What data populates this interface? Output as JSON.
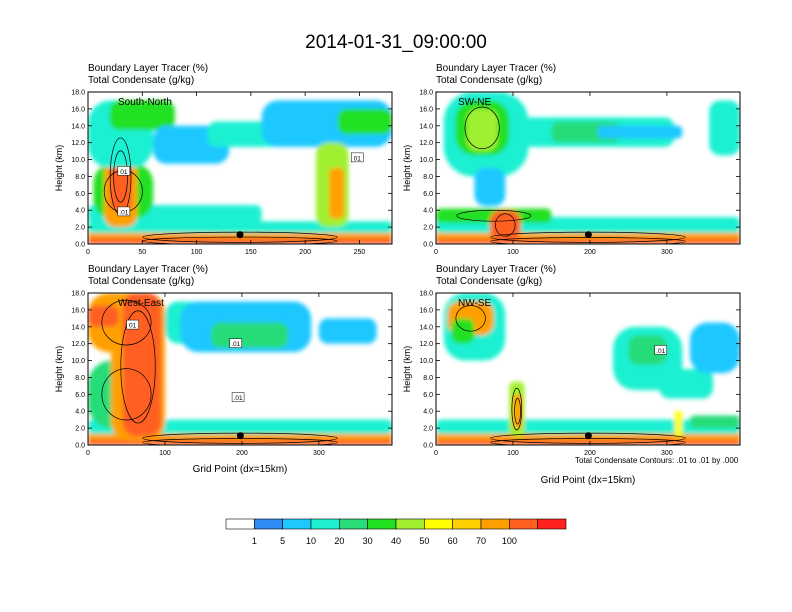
{
  "figure": {
    "title": "2014-01-31_09:00:00",
    "contour_note": "Total Condensate Contours: .01 to .01 by .000",
    "colors": {
      "levels": [
        "#ffffff",
        "#2f8cf2",
        "#1ec8ff",
        "#1ef0d2",
        "#28dc78",
        "#20e020",
        "#a0f030",
        "#ffff00",
        "#ffd000",
        "#ffa000",
        "#ff6020",
        "#ff2020"
      ],
      "contour": "#000000",
      "marker": "#000000"
    }
  },
  "colorbar": {
    "tick_labels": [
      "1",
      "5",
      "10",
      "20",
      "30",
      "40",
      "50",
      "60",
      "70",
      "100"
    ]
  },
  "chart_data": [
    {
      "type": "heatmap",
      "panel": "South-North",
      "title_line1": "Boundary Layer Tracer    (%)",
      "title_line2": "Total Condensate    (g/kg)",
      "ylabel": "Height (km)",
      "xlabel": "",
      "xlim": [
        0,
        280
      ],
      "ylim": [
        0,
        18
      ],
      "xticks": [
        0,
        50,
        100,
        150,
        200,
        250
      ],
      "yticks": [
        0.0,
        2.0,
        4.0,
        6.0,
        8.0,
        10.0,
        12.0,
        14.0,
        16.0,
        18.0
      ],
      "ytick_labels": [
        "0.0",
        "2.0",
        "4.0",
        "6.0",
        "8.0",
        "10.0",
        "12.0",
        "14.0",
        "16.0",
        "18.0"
      ],
      "contour_labels": [
        {
          "text": "01",
          "x": 33,
          "y": 8.6
        },
        {
          "text": ".01",
          "x": 33,
          "y": 3.8
        },
        {
          "text": "01",
          "x": 248,
          "y": 10.2
        }
      ],
      "marker": {
        "x": 140,
        "y": 1.1
      },
      "features": [
        {
          "x0": 0,
          "x1": 280,
          "y0": 0,
          "y1": 1.6,
          "v": 70
        },
        {
          "x0": 0,
          "x1": 280,
          "y0": 1.3,
          "y1": 2.7,
          "v": 10
        },
        {
          "x0": 0,
          "x1": 280,
          "y0": 0,
          "y1": 0.7,
          "v": 100
        },
        {
          "x0": 0,
          "x1": 160,
          "y0": 2.5,
          "y1": 4.6,
          "v": 10
        },
        {
          "x0": 5,
          "x1": 60,
          "y0": 3.0,
          "y1": 9.5,
          "v": 30
        },
        {
          "x0": 15,
          "x1": 45,
          "y0": 2.0,
          "y1": 14.0,
          "v": 70
        },
        {
          "x0": 20,
          "x1": 40,
          "y0": 4.0,
          "y1": 12.0,
          "v": 100
        },
        {
          "x0": 0,
          "x1": 60,
          "y0": 9.0,
          "y1": 17.0,
          "v": 10
        },
        {
          "x0": 20,
          "x1": 80,
          "y0": 13.5,
          "y1": 17.0,
          "v": 30
        },
        {
          "x0": 60,
          "x1": 130,
          "y0": 9.5,
          "y1": 14.0,
          "v": 5
        },
        {
          "x0": 110,
          "x1": 180,
          "y0": 11.5,
          "y1": 14.5,
          "v": 10
        },
        {
          "x0": 160,
          "x1": 280,
          "y0": 11.5,
          "y1": 17.0,
          "v": 5
        },
        {
          "x0": 230,
          "x1": 280,
          "y0": 13.0,
          "y1": 16.0,
          "v": 30
        },
        {
          "x0": 210,
          "x1": 240,
          "y0": 2.0,
          "y1": 12.0,
          "v": 40
        },
        {
          "x0": 222,
          "x1": 236,
          "y0": 3.0,
          "y1": 9.0,
          "v": 70
        }
      ]
    },
    {
      "type": "heatmap",
      "panel": "SW-NE",
      "title_line1": "Boundary Layer Tracer    (%)",
      "title_line2": "Total Condensate    (g/kg)",
      "ylabel": "Height (km)",
      "xlabel": "",
      "xlim": [
        0,
        395
      ],
      "ylim": [
        0,
        18
      ],
      "xticks": [
        0,
        100,
        200,
        300
      ],
      "yticks": [
        0.0,
        2.0,
        4.0,
        6.0,
        8.0,
        10.0,
        12.0,
        14.0,
        16.0,
        18.0
      ],
      "ytick_labels": [
        "0.0",
        "2.0",
        "4.0",
        "6.0",
        "8.0",
        "10.0",
        "12.0",
        "14.0",
        "16.0",
        "18.0"
      ],
      "contour_labels": [],
      "marker": {
        "x": 198,
        "y": 1.1
      },
      "features": [
        {
          "x0": 0,
          "x1": 395,
          "y0": 0,
          "y1": 1.6,
          "v": 70
        },
        {
          "x0": 0,
          "x1": 395,
          "y0": 1.3,
          "y1": 3.2,
          "v": 10
        },
        {
          "x0": 0,
          "x1": 395,
          "y0": 0,
          "y1": 0.6,
          "v": 100
        },
        {
          "x0": 0,
          "x1": 150,
          "y0": 2.5,
          "y1": 4.2,
          "v": 30
        },
        {
          "x0": 70,
          "x1": 110,
          "y0": 0.5,
          "y1": 4.0,
          "v": 100
        },
        {
          "x0": 10,
          "x1": 120,
          "y0": 8.0,
          "y1": 18.0,
          "v": 10
        },
        {
          "x0": 25,
          "x1": 95,
          "y0": 10.5,
          "y1": 17.0,
          "v": 30
        },
        {
          "x0": 40,
          "x1": 80,
          "y0": 11.0,
          "y1": 16.0,
          "v": 40
        },
        {
          "x0": 110,
          "x1": 310,
          "y0": 11.5,
          "y1": 15.0,
          "v": 10
        },
        {
          "x0": 150,
          "x1": 240,
          "y0": 12.0,
          "y1": 14.5,
          "v": 20
        },
        {
          "x0": 210,
          "x1": 320,
          "y0": 12.5,
          "y1": 14.0,
          "v": 5
        },
        {
          "x0": 355,
          "x1": 395,
          "y0": 10.5,
          "y1": 17.0,
          "v": 10
        },
        {
          "x0": 50,
          "x1": 90,
          "y0": 4.5,
          "y1": 9.0,
          "v": 5
        }
      ]
    },
    {
      "type": "heatmap",
      "panel": "West-East",
      "title_line1": "Boundary Layer Tracer    (%)",
      "title_line2": "Total Condensate    (g/kg)",
      "ylabel": "Height (km)",
      "xlabel": "Grid Point (dx=15km)",
      "xlim": [
        0,
        395
      ],
      "ylim": [
        0,
        18
      ],
      "xticks": [
        0,
        100,
        200,
        300
      ],
      "yticks": [
        0.0,
        2.0,
        4.0,
        6.0,
        8.0,
        10.0,
        12.0,
        14.0,
        16.0,
        18.0
      ],
      "ytick_labels": [
        "0.0",
        "2.0",
        "4.0",
        "6.0",
        "8.0",
        "10.0",
        "12.0",
        "14.0",
        "16.0",
        "18.0"
      ],
      "contour_labels": [
        {
          "text": "01",
          "x": 58,
          "y": 14.2
        },
        {
          "text": ".01",
          "x": 192,
          "y": 12.0
        },
        {
          "text": ".01",
          "x": 195,
          "y": 5.6
        }
      ],
      "marker": {
        "x": 198,
        "y": 1.1
      },
      "features": [
        {
          "x0": 0,
          "x1": 395,
          "y0": 0,
          "y1": 1.6,
          "v": 70
        },
        {
          "x0": 0,
          "x1": 395,
          "y0": 1.3,
          "y1": 3.0,
          "v": 10
        },
        {
          "x0": 0,
          "x1": 395,
          "y0": 0,
          "y1": 0.6,
          "v": 100
        },
        {
          "x0": 0,
          "x1": 100,
          "y0": 2.0,
          "y1": 10.0,
          "v": 20
        },
        {
          "x0": 0,
          "x1": 100,
          "y0": 11.0,
          "y1": 18.0,
          "v": 70
        },
        {
          "x0": 30,
          "x1": 100,
          "y0": 0.5,
          "y1": 18.0,
          "v": 70
        },
        {
          "x0": 45,
          "x1": 95,
          "y0": 1.0,
          "y1": 18.0,
          "v": 100
        },
        {
          "x0": 0,
          "x1": 40,
          "y0": 14.0,
          "y1": 16.5,
          "v": 100
        },
        {
          "x0": 100,
          "x1": 150,
          "y0": 12.0,
          "y1": 17.0,
          "v": 10
        },
        {
          "x0": 120,
          "x1": 290,
          "y0": 11.0,
          "y1": 17.0,
          "v": 5
        },
        {
          "x0": 160,
          "x1": 260,
          "y0": 11.5,
          "y1": 14.5,
          "v": 20
        },
        {
          "x0": 300,
          "x1": 375,
          "y0": 12.0,
          "y1": 15.0,
          "v": 5
        }
      ]
    },
    {
      "type": "heatmap",
      "panel": "NW-SE",
      "title_line1": "Boundary Layer Tracer    (%)",
      "title_line2": "Total Condensate    (g/kg)",
      "ylabel": "Height (km)",
      "xlabel": "Grid Point (dx=15km)",
      "xlim": [
        0,
        395
      ],
      "ylim": [
        0,
        18
      ],
      "xticks": [
        0,
        100,
        200,
        300
      ],
      "yticks": [
        0.0,
        2.0,
        4.0,
        6.0,
        8.0,
        10.0,
        12.0,
        14.0,
        16.0,
        18.0
      ],
      "ytick_labels": [
        "0.0",
        "2.0",
        "4.0",
        "6.0",
        "8.0",
        "10.0",
        "12.0",
        "14.0",
        "16.0",
        "18.0"
      ],
      "contour_labels": [
        {
          "text": ".01",
          "x": 292,
          "y": 11.2
        }
      ],
      "marker": {
        "x": 198,
        "y": 1.1
      },
      "features": [
        {
          "x0": 0,
          "x1": 395,
          "y0": 0,
          "y1": 1.6,
          "v": 70
        },
        {
          "x0": 0,
          "x1": 395,
          "y0": 1.3,
          "y1": 3.0,
          "v": 10
        },
        {
          "x0": 0,
          "x1": 395,
          "y0": 0,
          "y1": 0.6,
          "v": 100
        },
        {
          "x0": 95,
          "x1": 115,
          "y0": 1.0,
          "y1": 7.5,
          "v": 40
        },
        {
          "x0": 100,
          "x1": 112,
          "y0": 2.0,
          "y1": 6.0,
          "v": 70
        },
        {
          "x0": 10,
          "x1": 90,
          "y0": 10.0,
          "y1": 18.0,
          "v": 10
        },
        {
          "x0": 15,
          "x1": 75,
          "y0": 13.0,
          "y1": 17.0,
          "v": 70
        },
        {
          "x0": 20,
          "x1": 50,
          "y0": 12.0,
          "y1": 15.0,
          "v": 30
        },
        {
          "x0": 230,
          "x1": 320,
          "y0": 6.5,
          "y1": 14.0,
          "v": 10
        },
        {
          "x0": 250,
          "x1": 300,
          "y0": 9.5,
          "y1": 13.0,
          "v": 20
        },
        {
          "x0": 290,
          "x1": 360,
          "y0": 5.5,
          "y1": 9.0,
          "v": 10
        },
        {
          "x0": 330,
          "x1": 395,
          "y0": 8.5,
          "y1": 14.5,
          "v": 5
        },
        {
          "x0": 330,
          "x1": 395,
          "y0": 2.0,
          "y1": 3.5,
          "v": 20
        },
        {
          "x0": 310,
          "x1": 320,
          "y0": 1.0,
          "y1": 4.0,
          "v": 50
        }
      ]
    }
  ]
}
